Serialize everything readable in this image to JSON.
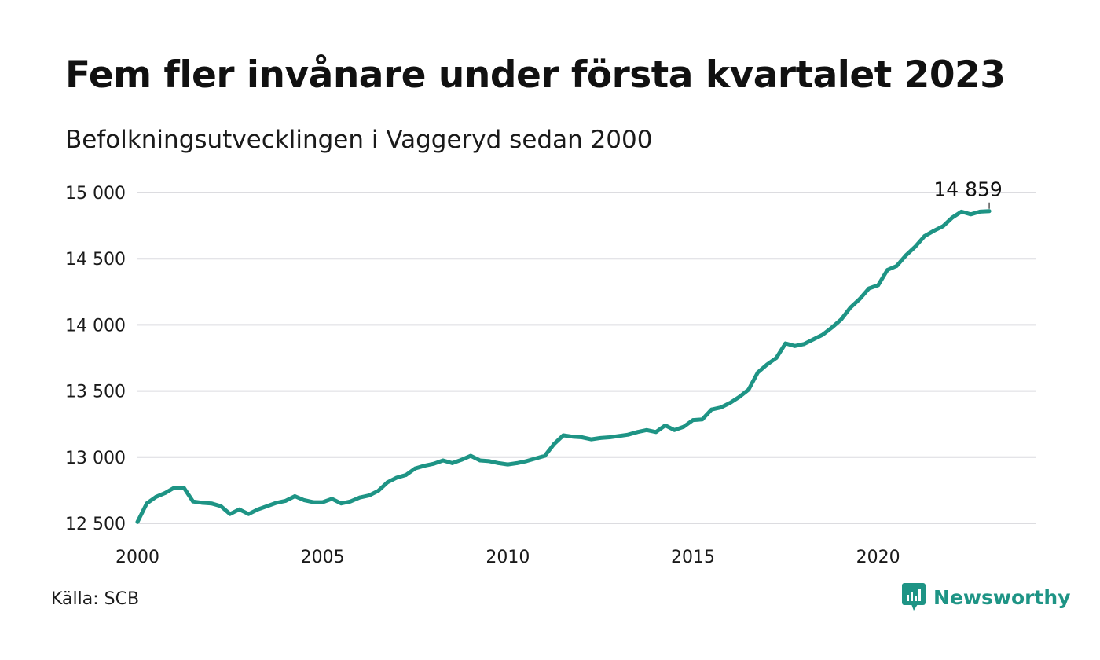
{
  "colors": {
    "line": "#1e9485",
    "grid": "#dcdce0",
    "brand": "#1e9485"
  },
  "footer": {
    "source": "Källa: SCB",
    "brand_name": "Newsworthy",
    "brand_icon": "newsworthy-logo-icon"
  },
  "chart_data": {
    "type": "line",
    "title": "Fem fler invånare under första kvartalet 2023",
    "subtitle": "Befolkningsutvecklingen i Vaggeryd sedan 2000",
    "xlabel": "",
    "ylabel": "",
    "xlim": [
      2000,
      2024.25
    ],
    "ylim": [
      12500,
      15000
    ],
    "x_ticks": [
      2000,
      2005,
      2010,
      2015,
      2020
    ],
    "x_tick_labels": [
      "2000",
      "2005",
      "2010",
      "2015",
      "2020"
    ],
    "y_ticks": [
      12500,
      13000,
      13500,
      14000,
      14500,
      15000
    ],
    "y_tick_labels": [
      "12 500",
      "13 000",
      "13 500",
      "14 000",
      "14 500",
      "15 000"
    ],
    "grid": "horizontal",
    "legend": "none",
    "annotation": {
      "x": 2023.0,
      "y": 14859,
      "label": "14 859"
    },
    "series": [
      {
        "x": [
          2000.0,
          2000.25,
          2000.5,
          2000.75,
          2001.0,
          2001.25,
          2001.5,
          2001.75,
          2002.0,
          2002.25,
          2002.5,
          2002.75,
          2003.0,
          2003.25,
          2003.5,
          2003.75,
          2004.0,
          2004.25,
          2004.5,
          2004.75,
          2005.0,
          2005.25,
          2005.5,
          2005.75,
          2006.0,
          2006.25,
          2006.5,
          2006.75,
          2007.0,
          2007.25,
          2007.5,
          2007.75,
          2008.0,
          2008.25,
          2008.5,
          2008.75,
          2009.0,
          2009.25,
          2009.5,
          2009.75,
          2010.0,
          2010.25,
          2010.5,
          2010.75,
          2011.0,
          2011.25,
          2011.5,
          2011.75,
          2012.0,
          2012.25,
          2012.5,
          2012.75,
          2013.0,
          2013.25,
          2013.5,
          2013.75,
          2014.0,
          2014.25,
          2014.5,
          2014.75,
          2015.0,
          2015.25,
          2015.5,
          2015.75,
          2016.0,
          2016.25,
          2016.5,
          2016.75,
          2017.0,
          2017.25,
          2017.5,
          2017.75,
          2018.0,
          2018.25,
          2018.5,
          2018.75,
          2019.0,
          2019.25,
          2019.5,
          2019.75,
          2020.0,
          2020.25,
          2020.5,
          2020.75,
          2021.0,
          2021.25,
          2021.5,
          2021.75,
          2022.0,
          2022.25,
          2022.5,
          2022.75,
          2023.0
        ],
        "values": [
          12510,
          12650,
          12700,
          12730,
          12770,
          12770,
          12665,
          12655,
          12650,
          12630,
          12570,
          12605,
          12570,
          12605,
          12630,
          12655,
          12670,
          12705,
          12675,
          12660,
          12660,
          12685,
          12650,
          12665,
          12695,
          12710,
          12745,
          12810,
          12845,
          12865,
          12915,
          12935,
          12950,
          12975,
          12955,
          12980,
          13010,
          12975,
          12970,
          12955,
          12945,
          12955,
          12970,
          12990,
          13010,
          13100,
          13165,
          13155,
          13150,
          13135,
          13145,
          13150,
          13160,
          13170,
          13190,
          13205,
          13190,
          13240,
          13205,
          13230,
          13280,
          13285,
          13360,
          13375,
          13410,
          13455,
          13510,
          13640,
          13700,
          13750,
          13860,
          13840,
          13855,
          13890,
          13925,
          13980,
          14040,
          14130,
          14195,
          14275,
          14300,
          14415,
          14445,
          14525,
          14590,
          14670,
          14710,
          14745,
          14810,
          14855,
          14835,
          14855,
          14859
        ]
      }
    ]
  }
}
